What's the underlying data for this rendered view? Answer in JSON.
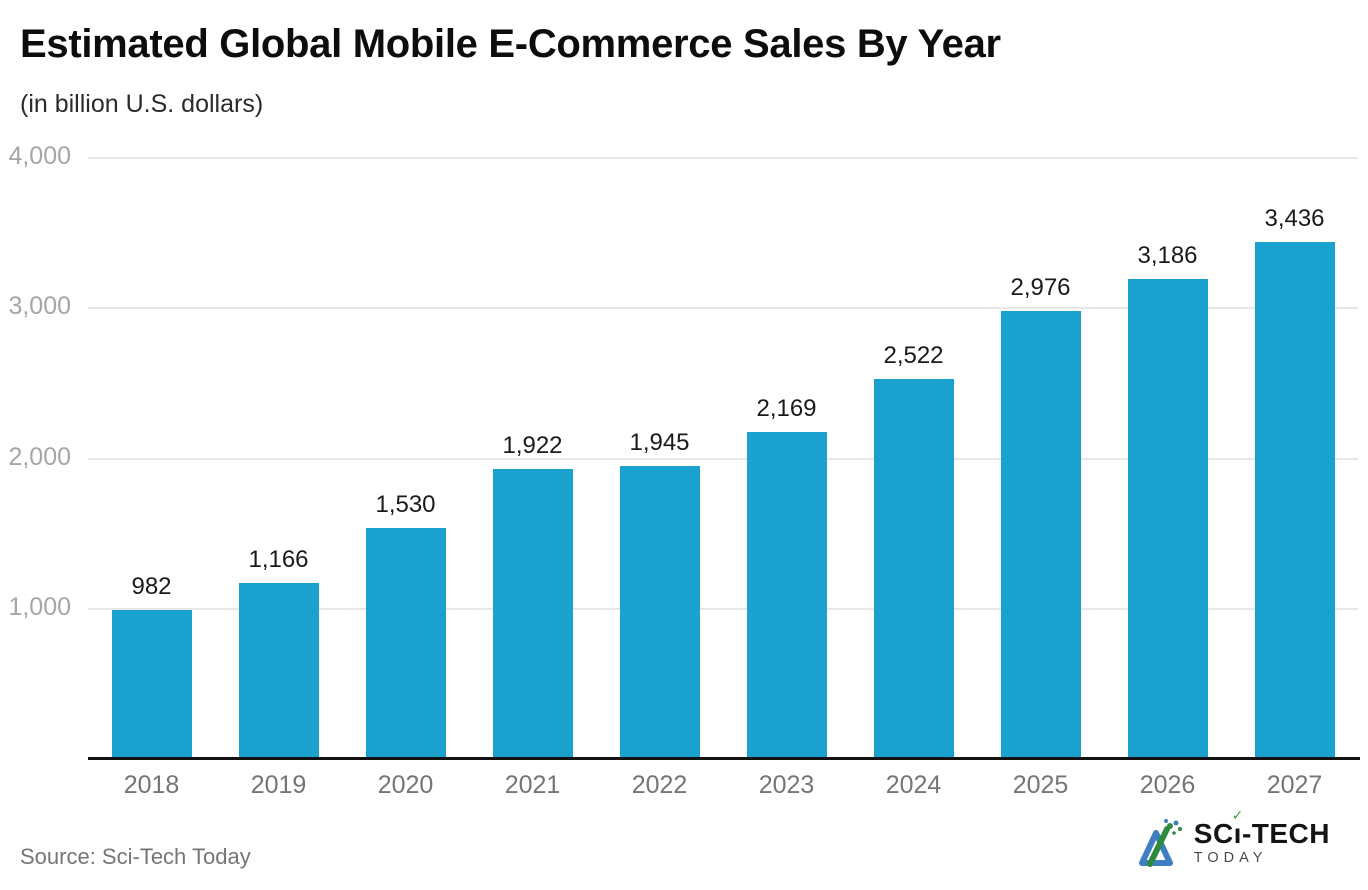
{
  "header": {
    "title": "Estimated Global Mobile E-Commerce Sales By Year",
    "subtitle": "(in billion U.S. dollars)"
  },
  "chart_data": {
    "type": "bar",
    "title": "Estimated Global Mobile E-Commerce Sales By Year",
    "subtitle": "(in billion U.S. dollars)",
    "categories": [
      "2018",
      "2019",
      "2020",
      "2021",
      "2022",
      "2023",
      "2024",
      "2025",
      "2026",
      "2027"
    ],
    "values": [
      982,
      1166,
      1530,
      1922,
      1945,
      2169,
      2522,
      2976,
      3186,
      3436
    ],
    "value_labels": [
      "982",
      "1,166",
      "1,530",
      "1,922",
      "1,945",
      "2,169",
      "2,522",
      "2,976",
      "3,186",
      "3,436"
    ],
    "xlabel": "",
    "ylabel": "",
    "ylim": [
      0,
      4000
    ],
    "yticks": [
      1000,
      2000,
      3000,
      4000
    ],
    "ytick_labels": [
      "1,000",
      "2,000",
      "3,000",
      "4,000"
    ],
    "grid": "horizontal",
    "legend": "none",
    "bar_color": "#1BA1CE"
  },
  "colors": {
    "bar": "#1BA1CE",
    "gridline": "#e7e7e7",
    "axis_line": "#111111",
    "ytick_text": "#a6a6a6",
    "xtick_text": "#757575",
    "value_text": "#1a1a1a",
    "title_text": "#0d0d0d",
    "subtitle_text": "#2b2b2b",
    "source_text": "#757575",
    "logo_text": "#141414",
    "logo_tagline": "#4b4b4b",
    "logo_check": "#2fa43c",
    "logo_blue": "#3d7fc1",
    "logo_green": "#2e8b3d"
  },
  "footer": {
    "source": "Source: Sci-Tech Today",
    "logo": {
      "icon_name": "scitech-triangle-icon",
      "part_sc": "SC",
      "part_i": "ı",
      "check": "✓",
      "part_rest": "-TECH",
      "tagline": "TODAY"
    }
  }
}
